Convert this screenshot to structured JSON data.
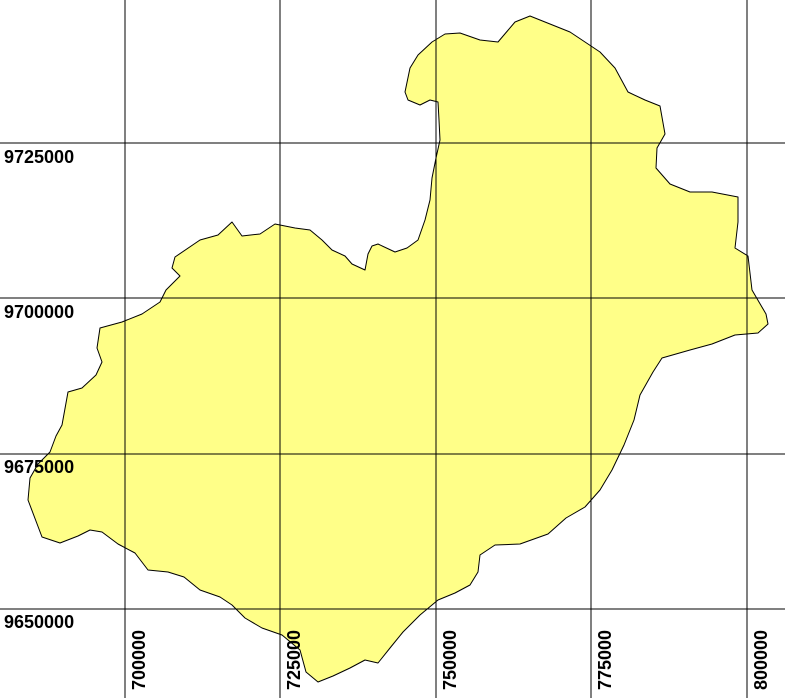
{
  "map": {
    "fill_color": "#ffff88",
    "outline_color": "#000000",
    "grid_color": "#000000",
    "background": "#ffffff"
  },
  "grid": {
    "y_labels": [
      "9725000",
      "9700000",
      "9675000",
      "9650000"
    ],
    "x_labels": [
      "700000",
      "725000",
      "750000",
      "775000",
      "800000"
    ]
  }
}
